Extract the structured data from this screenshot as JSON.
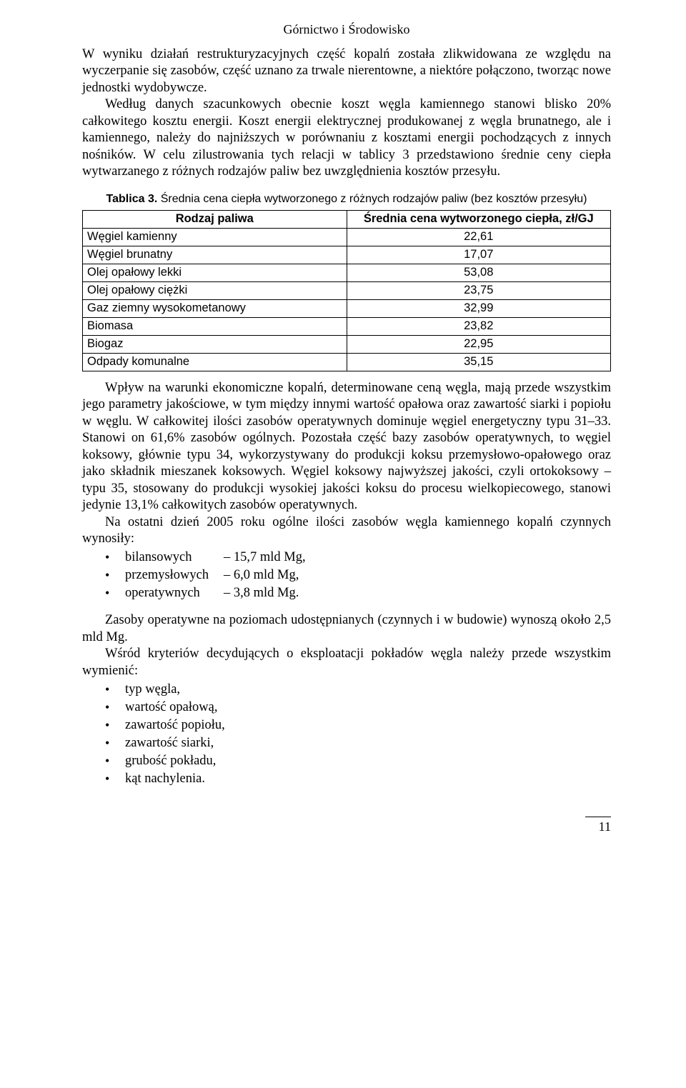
{
  "header": {
    "title": "Górnictwo i Środowisko"
  },
  "para1": "W wyniku działań restrukturyzacyjnych część kopalń została zlikwidowana ze względu na wyczerpanie się zasobów, część uznano za trwale nierentowne, a niektóre połączono, tworząc nowe jednostki wydobywcze.",
  "para2": "Według danych szacunkowych obecnie koszt węgla kamiennego stanowi blisko 20% całkowitego kosztu energii. Koszt energii elektrycznej produkowanej z węgla brunatnego, ale i kamiennego, należy do najniższych w porównaniu z kosztami energii pochodzących z innych nośników. W celu zilustrowania tych relacji w tablicy 3 przedstawiono średnie ceny ciepła wytwarzanego z różnych rodzajów paliw bez uwzględnienia kosztów przesyłu.",
  "table3": {
    "caption_label": "Tablica 3.",
    "caption_text": " Średnia cena ciepła wytworzonego z różnych rodzajów paliw (bez kosztów przesyłu)",
    "col1_header": "Rodzaj paliwa",
    "col2_header": "Średnia cena wytworzonego ciepła, zł/GJ",
    "rows": [
      {
        "name": "Węgiel kamienny",
        "value": "22,61"
      },
      {
        "name": "Węgiel brunatny",
        "value": "17,07"
      },
      {
        "name": "Olej opałowy lekki",
        "value": "53,08"
      },
      {
        "name": "Olej opałowy ciężki",
        "value": "23,75"
      },
      {
        "name": "Gaz ziemny wysokometanowy",
        "value": "32,99"
      },
      {
        "name": "Biomasa",
        "value": "23,82"
      },
      {
        "name": "Biogaz",
        "value": "22,95"
      },
      {
        "name": "Odpady komunalne",
        "value": "35,15"
      }
    ]
  },
  "para3": "Wpływ na warunki ekonomiczne kopalń, determinowane ceną węgla, mają przede wszystkim jego parametry jakościowe, w tym między innymi wartość opałowa oraz zawartość siarki i popiołu w węglu. W całkowitej ilości zasobów operatywnych dominuje węgiel energetyczny typu 31–33. Stanowi on 61,6% zasobów ogólnych. Pozostała część bazy zasobów operatywnych, to węgiel koksowy, głównie typu 34, wykorzystywany do produkcji koksu przemysłowo-opałowego oraz jako składnik mieszanek koksowych. Węgiel koksowy najwyższej jakości, czyli ortokoksowy – typu 35, stosowany do produkcji wysokiej jakości koksu do procesu wielkopiecowego, stanowi jedynie 13,1% całkowitych zasobów operatywnych.",
  "para4": "Na ostatni dzień 2005 roku ogólne ilości zasobów węgla kamiennego kopalń czynnych wynosiły:",
  "resources": [
    {
      "label": "bilansowych",
      "value": "– 15,7 mld Mg,"
    },
    {
      "label": "przemysłowych",
      "value": "– 6,0 mld Mg,"
    },
    {
      "label": "operatywnych",
      "value": "– 3,8 mld Mg."
    }
  ],
  "para5": "Zasoby operatywne na poziomach udostępnianych (czynnych i w budowie) wynoszą około 2,5 mld Mg.",
  "para6": "Wśród kryteriów decydujących o eksploatacji pokładów węgla należy przede wszystkim wymienić:",
  "criteria": [
    "typ węgla,",
    "wartość opałową,",
    "zawartość popiołu,",
    "zawartość siarki,",
    "grubość pokładu,",
    "kąt nachylenia."
  ],
  "page_number": "11"
}
